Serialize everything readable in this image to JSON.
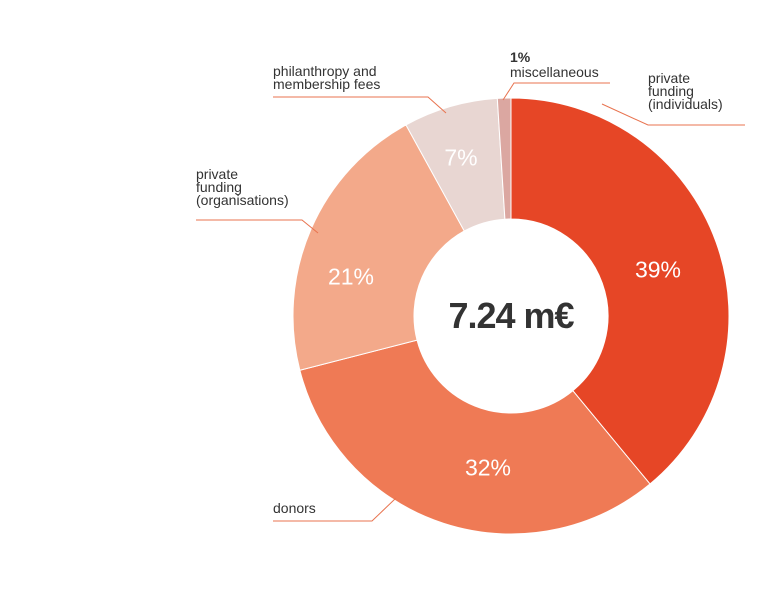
{
  "chart_data": {
    "type": "donut",
    "center_label": "7.24 m€",
    "categories": [
      "private\nfunding\n(individuals)",
      "donors",
      "private\nfunding\n(organisations)",
      "philanthropy and\nmembership fees",
      "miscellaneous"
    ],
    "values": [
      39,
      32,
      21,
      7,
      1
    ],
    "value_labels": [
      "39%",
      "32%",
      "21%",
      "7%",
      "1%"
    ],
    "colors": [
      "#e64626",
      "#ef7a55",
      "#f3a98a",
      "#e8d6d2",
      "#dba7a1"
    ]
  }
}
